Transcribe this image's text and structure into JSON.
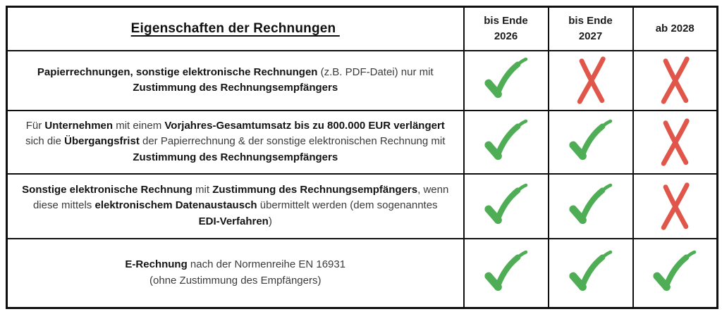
{
  "table": {
    "header": {
      "title": "Eigenschaften der Rechnungen ",
      "columns": [
        "bis Ende\n2026",
        "bis Ende\n2027",
        "ab 2028"
      ]
    },
    "rows": [
      {
        "segments": [
          {
            "text": "Papierrechnungen, sonstige elektronische Rechnungen",
            "bold": true
          },
          {
            "text": " (z.B. PDF-Datei) nur mit\n",
            "bold": false
          },
          {
            "text": "Zustimmung des Rechnungsempfängers",
            "bold": true
          }
        ],
        "marks": [
          "check",
          "cross",
          "cross"
        ]
      },
      {
        "segments": [
          {
            "text": "Für ",
            "bold": false
          },
          {
            "text": "Unternehmen",
            "bold": true
          },
          {
            "text": " mit einem ",
            "bold": false
          },
          {
            "text": "Vorjahres-Gesamtumsatz bis zu 800.000 EUR verlängert",
            "bold": true
          },
          {
            "text": "\nsich die ",
            "bold": false
          },
          {
            "text": "Übergangsfrist",
            "bold": true
          },
          {
            "text": " der Papierrechnung & der sonstige elektronischen Rechnung mit\n",
            "bold": false
          },
          {
            "text": "Zustimmung des Rechnungsempfängers",
            "bold": true
          }
        ],
        "marks": [
          "check",
          "check",
          "cross"
        ]
      },
      {
        "segments": [
          {
            "text": "Sonstige elektronische Rechnung",
            "bold": true
          },
          {
            "text": " mit ",
            "bold": false
          },
          {
            "text": "Zustimmung des Rechnungsempfängers",
            "bold": true
          },
          {
            "text": ", wenn\ndiese mittels ",
            "bold": false
          },
          {
            "text": "elektronischem Datenaustausch",
            "bold": true
          },
          {
            "text": " übermittelt werden (dem sogenanntes\n",
            "bold": false
          },
          {
            "text": "EDI-Verfahren",
            "bold": true
          },
          {
            "text": ")",
            "bold": false
          }
        ],
        "marks": [
          "check",
          "check",
          "cross"
        ]
      },
      {
        "segments": [
          {
            "text": "E-Rechnung",
            "bold": true
          },
          {
            "text": " nach der Normenreihe EN 16931\n(ohne Zustimmung des Empfängers)",
            "bold": false
          }
        ],
        "marks": [
          "check",
          "check",
          "check"
        ]
      }
    ]
  },
  "colors": {
    "check": "#4fae55",
    "cross": "#e0564a",
    "border": "#0f0f0f",
    "text_bold": "#141414",
    "text_regular": "#3b3b3b"
  }
}
